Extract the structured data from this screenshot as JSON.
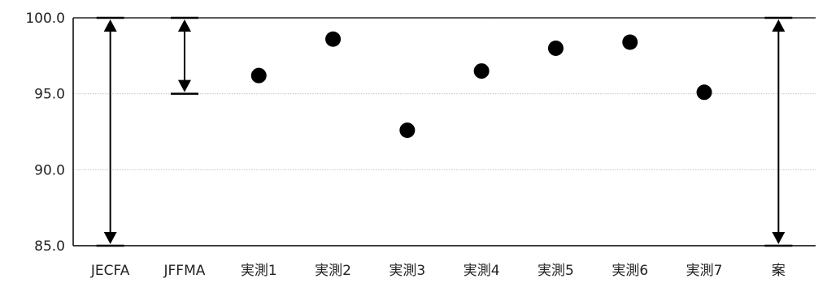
{
  "chart_data": {
    "type": "scatter",
    "title": "",
    "xlabel": "",
    "ylabel": "",
    "ylim": [
      85,
      100
    ],
    "yticks": [
      85,
      90,
      95,
      100
    ],
    "ytick_labels": [
      "85.0",
      "90.0",
      "95.0",
      "100.0"
    ],
    "categories": [
      "JECFA",
      "JFFMA",
      "実測1",
      "実測2",
      "実測3",
      "実測4",
      "実測5",
      "実測6",
      "実測7",
      "案"
    ],
    "points": [
      {
        "category": "実測1",
        "y": 96.2
      },
      {
        "category": "実測2",
        "y": 98.6
      },
      {
        "category": "実測3",
        "y": 92.6
      },
      {
        "category": "実測4",
        "y": 96.5
      },
      {
        "category": "実測5",
        "y": 98.0
      },
      {
        "category": "実測6",
        "y": 98.4
      },
      {
        "category": "実測7",
        "y": 95.1
      }
    ],
    "ranges": [
      {
        "category": "JECFA",
        "low": 85.0,
        "high": 100.0
      },
      {
        "category": "JFFMA",
        "low": 95.0,
        "high": 100.0
      },
      {
        "category": "案",
        "low": 85.0,
        "high": 100.0
      }
    ],
    "grid": true,
    "colors": {
      "marker": "#000000",
      "range": "#000000",
      "axis": "#000000",
      "grid": "#c8c8c8"
    }
  }
}
